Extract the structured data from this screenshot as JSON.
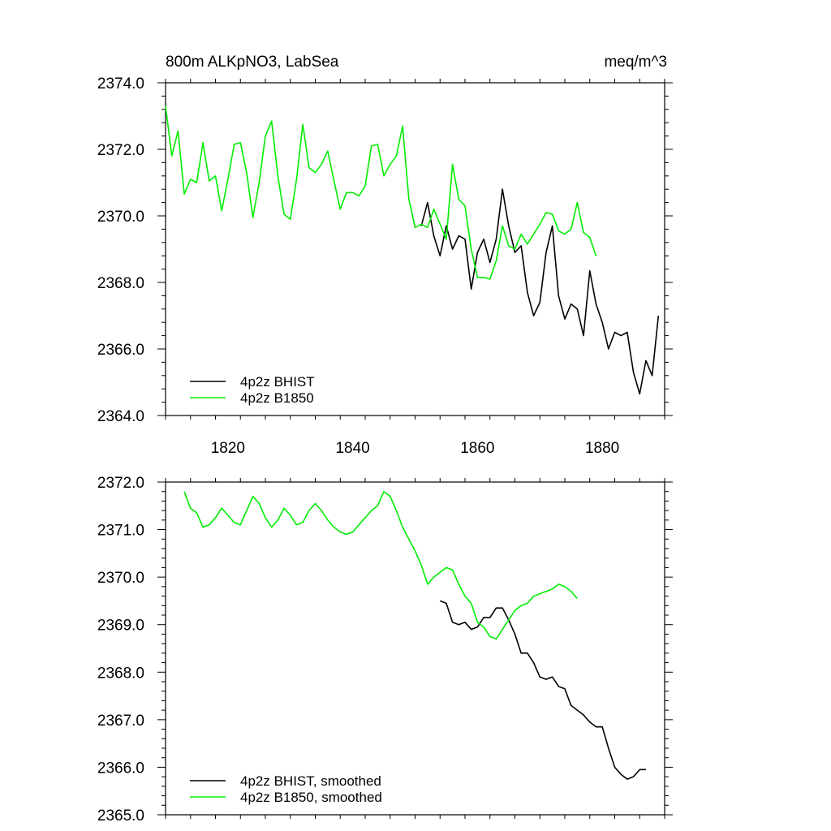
{
  "chart_data": [
    {
      "type": "line",
      "title": "800m ALKpNO3, LabSea",
      "units": "meq/m^3",
      "xlim": [
        1810,
        1890
      ],
      "ylim": [
        2364.0,
        2374.0
      ],
      "x_ticks": [
        1820,
        1840,
        1860,
        1880
      ],
      "x_tick_labels": [
        "1820",
        "1840",
        "1860",
        "1880"
      ],
      "y_ticks": [
        2364.0,
        2366.0,
        2368.0,
        2370.0,
        2372.0,
        2374.0
      ],
      "y_tick_labels": [
        "2364.0",
        "2366.0",
        "2368.0",
        "2370.0",
        "2372.0",
        "2374.0"
      ],
      "legend": "bottom-left",
      "series": [
        {
          "name": "4p2z BHIST",
          "color": "#000000",
          "x": [
            1851,
            1852,
            1853,
            1854,
            1855,
            1856,
            1857,
            1858,
            1859,
            1860,
            1861,
            1862,
            1863,
            1864,
            1865,
            1866,
            1867,
            1868,
            1869,
            1870,
            1871,
            1872,
            1873,
            1874,
            1875,
            1876,
            1877,
            1878,
            1879,
            1880,
            1881,
            1882,
            1883,
            1884,
            1885,
            1886,
            1887,
            1888,
            1889
          ],
          "values": [
            2369.7,
            2370.4,
            2369.4,
            2368.8,
            2369.7,
            2369.0,
            2369.4,
            2369.3,
            2367.8,
            2368.9,
            2369.3,
            2368.6,
            2369.3,
            2370.8,
            2369.7,
            2368.9,
            2369.1,
            2367.7,
            2367.0,
            2367.4,
            2368.9,
            2369.7,
            2367.6,
            2366.9,
            2367.35,
            2367.2,
            2366.4,
            2368.35,
            2367.35,
            2366.8,
            2366.0,
            2366.5,
            2366.4,
            2366.5,
            2365.3,
            2364.65,
            2365.65,
            2365.2,
            2367.0
          ]
        },
        {
          "name": "4p2z B1850",
          "color": "#00ee00",
          "x": [
            1810,
            1811,
            1812,
            1813,
            1814,
            1815,
            1816,
            1817,
            1818,
            1819,
            1820,
            1821,
            1822,
            1823,
            1824,
            1825,
            1826,
            1827,
            1828,
            1829,
            1830,
            1831,
            1832,
            1833,
            1834,
            1835,
            1836,
            1837,
            1838,
            1839,
            1840,
            1841,
            1842,
            1843,
            1844,
            1845,
            1846,
            1847,
            1848,
            1849,
            1850,
            1851,
            1852,
            1853,
            1854,
            1855,
            1856,
            1857,
            1858,
            1859,
            1860,
            1861,
            1862,
            1863,
            1864,
            1865,
            1866,
            1867,
            1868,
            1869,
            1870,
            1871,
            1872,
            1873,
            1874,
            1875,
            1876,
            1877,
            1878,
            1879
          ],
          "values": [
            2373.3,
            2371.8,
            2372.55,
            2370.65,
            2371.1,
            2371.0,
            2372.2,
            2371.05,
            2371.2,
            2370.15,
            2371.1,
            2372.15,
            2372.2,
            2371.3,
            2369.95,
            2371.0,
            2372.4,
            2372.85,
            2371.2,
            2370.05,
            2369.9,
            2371.1,
            2372.75,
            2371.45,
            2371.3,
            2371.55,
            2371.95,
            2371.05,
            2370.2,
            2370.7,
            2370.7,
            2370.6,
            2370.9,
            2372.1,
            2372.15,
            2371.2,
            2371.55,
            2371.8,
            2372.7,
            2370.5,
            2369.65,
            2369.75,
            2369.65,
            2370.2,
            2369.75,
            2369.3,
            2371.55,
            2370.5,
            2370.3,
            2369.0,
            2368.15,
            2368.15,
            2368.1,
            2368.65,
            2369.7,
            2369.1,
            2369.0,
            2369.45,
            2369.15,
            2369.45,
            2369.75,
            2370.1,
            2370.05,
            2369.55,
            2369.45,
            2369.6,
            2370.4,
            2369.5,
            2369.35,
            2368.8
          ]
        }
      ]
    },
    {
      "type": "line",
      "title": "",
      "xlim": [
        1810,
        1890
      ],
      "ylim": [
        2365.0,
        2372.0
      ],
      "x_ticks": [
        1820,
        1840,
        1860,
        1880
      ],
      "y_ticks": [
        2365.0,
        2366.0,
        2367.0,
        2368.0,
        2369.0,
        2370.0,
        2371.0,
        2372.0
      ],
      "y_tick_labels": [
        "2365.0",
        "2366.0",
        "2367.0",
        "2368.0",
        "2369.0",
        "2370.0",
        "2371.0",
        "2372.0"
      ],
      "legend": "bottom-left",
      "series": [
        {
          "name": "4p2z BHIST, smoothed",
          "color": "#000000",
          "x": [
            1854,
            1855,
            1856,
            1857,
            1858,
            1859,
            1860,
            1861,
            1862,
            1863,
            1864,
            1865,
            1866,
            1867,
            1868,
            1869,
            1870,
            1871,
            1872,
            1873,
            1874,
            1875,
            1876,
            1877,
            1878,
            1879,
            1880,
            1881,
            1882,
            1883,
            1884,
            1885,
            1886,
            1887
          ],
          "values": [
            2369.5,
            2369.45,
            2369.05,
            2369.0,
            2369.05,
            2368.9,
            2368.95,
            2369.15,
            2369.15,
            2369.35,
            2369.35,
            2369.1,
            2368.8,
            2368.4,
            2368.4,
            2368.2,
            2367.9,
            2367.85,
            2367.9,
            2367.7,
            2367.65,
            2367.3,
            2367.2,
            2367.1,
            2366.95,
            2366.85,
            2366.85,
            2366.4,
            2366.0,
            2365.85,
            2365.75,
            2365.8,
            2365.95,
            2365.95
          ]
        },
        {
          "name": "4p2z B1850, smoothed",
          "color": "#00ee00",
          "x": [
            1813,
            1814,
            1815,
            1816,
            1817,
            1818,
            1819,
            1820,
            1821,
            1822,
            1823,
            1824,
            1825,
            1826,
            1827,
            1828,
            1829,
            1830,
            1831,
            1832,
            1833,
            1834,
            1835,
            1836,
            1837,
            1838,
            1839,
            1840,
            1841,
            1842,
            1843,
            1844,
            1845,
            1846,
            1847,
            1848,
            1849,
            1850,
            1851,
            1852,
            1853,
            1854,
            1855,
            1856,
            1857,
            1858,
            1859,
            1860,
            1861,
            1862,
            1863,
            1864,
            1865,
            1866,
            1867,
            1868,
            1869,
            1870,
            1871,
            1872,
            1873,
            1874,
            1875,
            1876
          ],
          "values": [
            2371.8,
            2371.45,
            2371.35,
            2371.05,
            2371.1,
            2371.25,
            2371.45,
            2371.3,
            2371.15,
            2371.1,
            2371.4,
            2371.7,
            2371.55,
            2371.25,
            2371.05,
            2371.2,
            2371.45,
            2371.3,
            2371.1,
            2371.15,
            2371.4,
            2371.55,
            2371.4,
            2371.2,
            2371.05,
            2370.95,
            2370.9,
            2370.95,
            2371.1,
            2371.25,
            2371.4,
            2371.5,
            2371.8,
            2371.7,
            2371.4,
            2371.05,
            2370.8,
            2370.55,
            2370.25,
            2369.85,
            2370.0,
            2370.1,
            2370.2,
            2370.15,
            2369.85,
            2369.6,
            2369.45,
            2369.05,
            2368.95,
            2368.75,
            2368.7,
            2368.9,
            2369.1,
            2369.3,
            2369.4,
            2369.45,
            2369.6,
            2369.65,
            2369.7,
            2369.75,
            2369.85,
            2369.8,
            2369.7,
            2369.55
          ]
        }
      ]
    }
  ]
}
